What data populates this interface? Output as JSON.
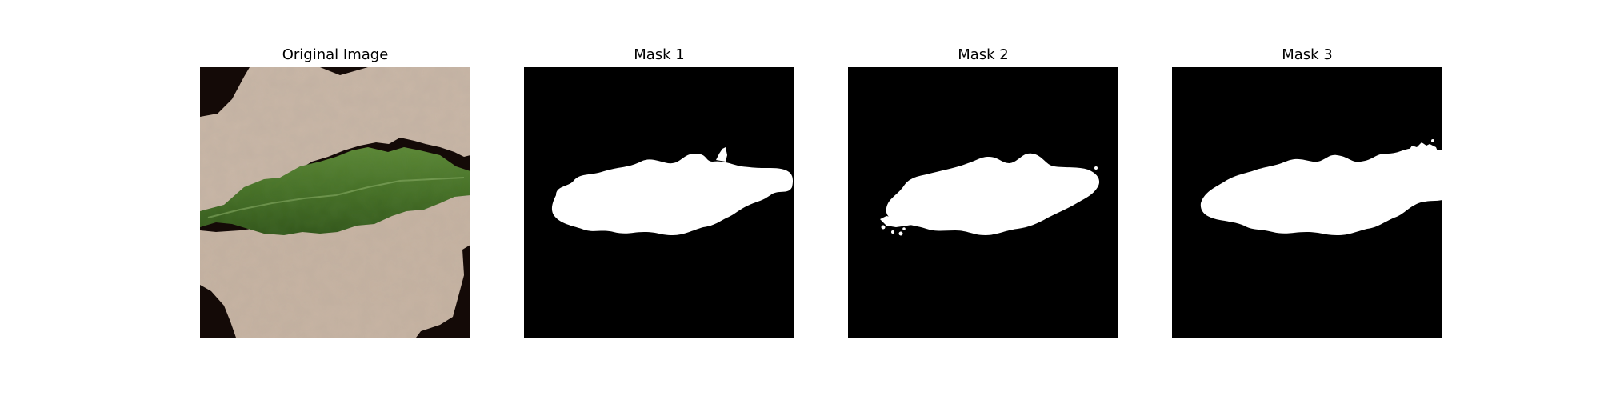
{
  "figure": {
    "panels": [
      {
        "title": "Original Image",
        "kind": "photo"
      },
      {
        "title": "Mask 1",
        "kind": "mask"
      },
      {
        "title": "Mask 2",
        "kind": "mask"
      },
      {
        "title": "Mask 3",
        "kind": "mask"
      }
    ],
    "colors": {
      "background": "#ffffff",
      "mask_background": "#000000",
      "mask_foreground": "#ffffff",
      "photo_dark_border": "#140a07",
      "photo_beige": "#c9b6a5",
      "photo_leaf": "#4f7a2c"
    }
  }
}
